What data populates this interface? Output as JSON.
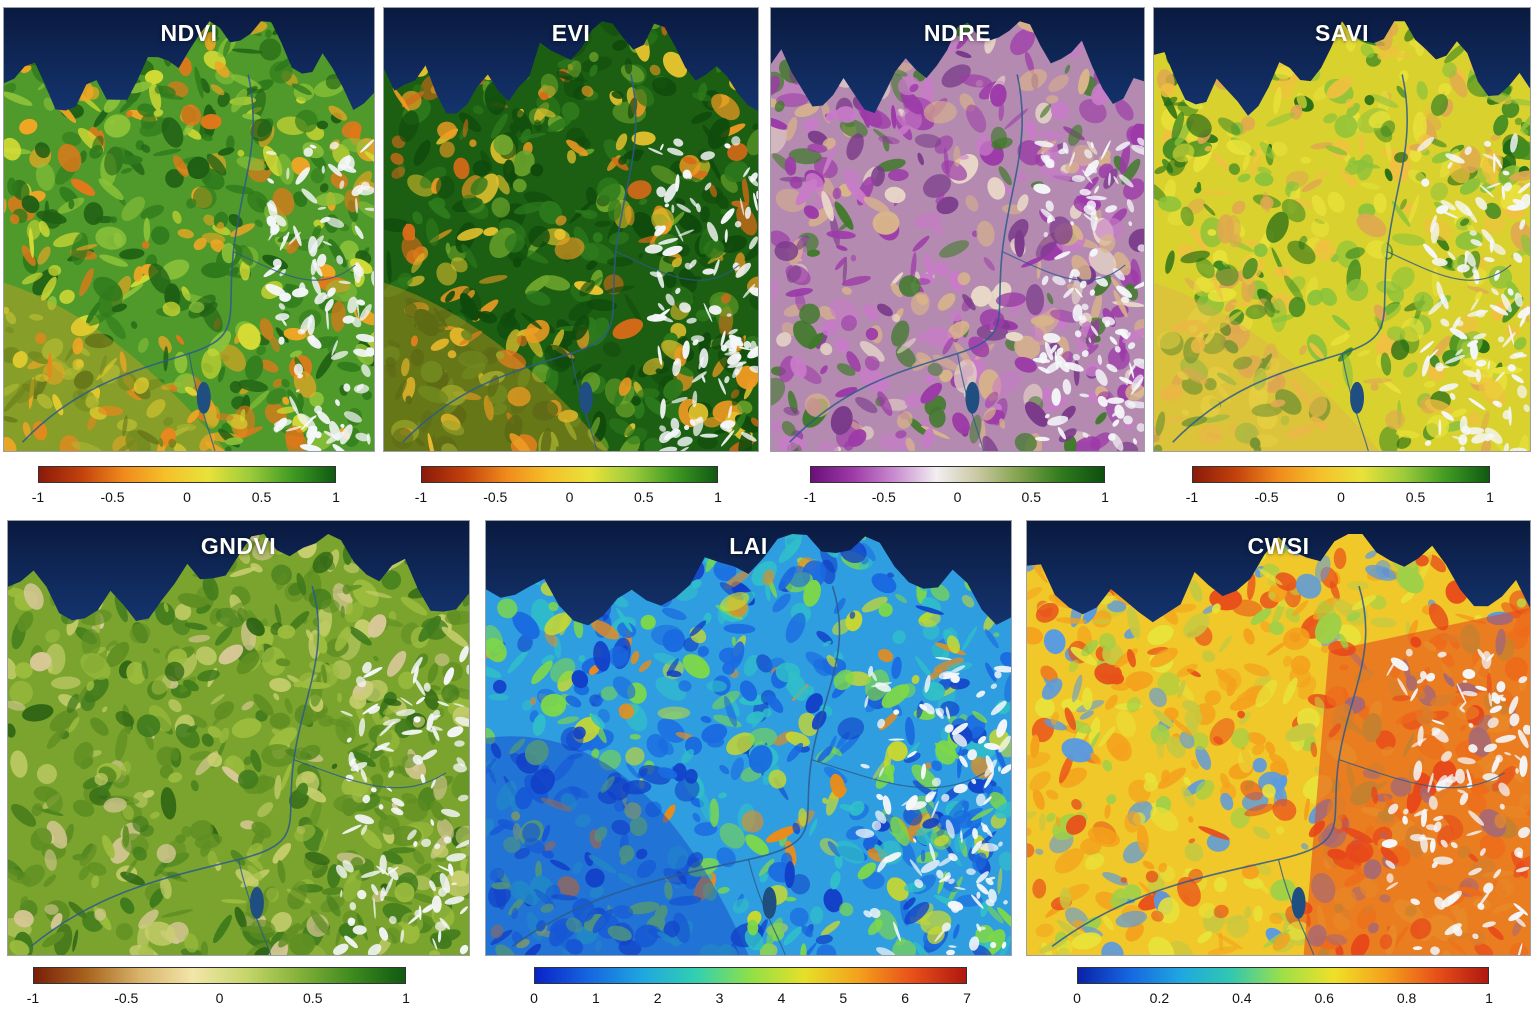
{
  "panels": [
    {
      "title": "NDVI",
      "palette": "ndvi",
      "colorbar": {
        "colors": [
          "#8b1a0a",
          "#c2410c",
          "#f08a1c",
          "#f5c02a",
          "#e8e23a",
          "#9bcb3b",
          "#3f9a22",
          "#0f5a12"
        ],
        "ticks": [
          "-1",
          "-0.5",
          "0",
          "0.5",
          "1"
        ]
      }
    },
    {
      "title": "EVI",
      "palette": "evi",
      "colorbar": {
        "colors": [
          "#8b1a0a",
          "#c2410c",
          "#f08a1c",
          "#f5c02a",
          "#e8e23a",
          "#9bcb3b",
          "#3f9a22",
          "#0f5a12"
        ],
        "ticks": [
          "-1",
          "-0.5",
          "0",
          "0.5",
          "1"
        ]
      }
    },
    {
      "title": "NDRE",
      "palette": "ndre",
      "colorbar": {
        "colors": [
          "#6a0f7a",
          "#9e3aa8",
          "#c98ccf",
          "#f2eef2",
          "#c9c7a0",
          "#7fa24a",
          "#2f7a1c",
          "#0d4f10"
        ],
        "ticks": [
          "-1",
          "-0.5",
          "0",
          "0.5",
          "1"
        ]
      }
    },
    {
      "title": "SAVI",
      "palette": "savi",
      "colorbar": {
        "colors": [
          "#8b1a0a",
          "#c2410c",
          "#f08a1c",
          "#f5c02a",
          "#e8e23a",
          "#9bcb3b",
          "#3f9a22",
          "#0f5a12"
        ],
        "ticks": [
          "-1",
          "-0.5",
          "0",
          "0.5",
          "1"
        ]
      }
    },
    {
      "title": "GNDVI",
      "palette": "gndvi",
      "colorbar": {
        "colors": [
          "#7a1e08",
          "#a8641e",
          "#d8b46a",
          "#f2e6a8",
          "#c6d66a",
          "#84b23a",
          "#3f8a1e",
          "#0f5a12"
        ],
        "ticks": [
          "-1",
          "-0.5",
          "0",
          "0.5",
          "1"
        ]
      }
    },
    {
      "title": "LAI",
      "palette": "lai",
      "colorbar": {
        "colors": [
          "#0a22c8",
          "#1566e0",
          "#1fa7e0",
          "#32d0b0",
          "#8fe048",
          "#e6e028",
          "#f4a11c",
          "#e8501a",
          "#b0170f"
        ],
        "ticks": [
          "0",
          "1",
          "2",
          "3",
          "4",
          "5",
          "6",
          "7"
        ]
      }
    },
    {
      "title": "CWSI",
      "palette": "cwsi",
      "colorbar": {
        "colors": [
          "#0a22a8",
          "#1566e0",
          "#1fa7e0",
          "#32c8b0",
          "#9ee048",
          "#f0e028",
          "#f4a11c",
          "#e8501a",
          "#b0170f"
        ],
        "ticks": [
          "0",
          "0.2",
          "0.4",
          "0.6",
          "0.8",
          "1"
        ]
      }
    }
  ]
}
